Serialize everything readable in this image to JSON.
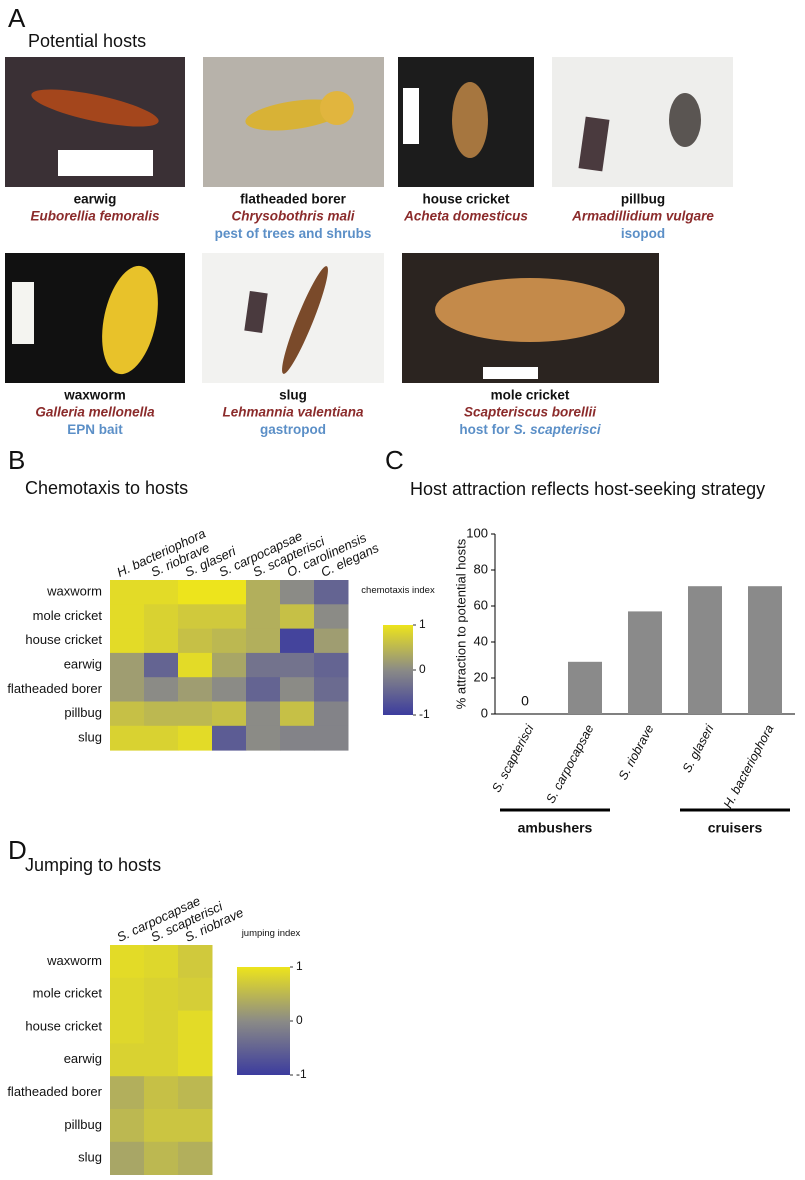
{
  "panel_a": {
    "label": "A",
    "title": "Potential hosts",
    "hosts": [
      {
        "common": "earwig",
        "species": "Euborellia femoralis"
      },
      {
        "common": "flatheaded borer",
        "species": "Chrysobothris mali",
        "note": "pest of trees and shrubs"
      },
      {
        "common": "house cricket",
        "species": "Acheta domesticus"
      },
      {
        "common": "pillbug",
        "species": "Armadillidium vulgare",
        "note": "isopod"
      },
      {
        "common": "waxworm",
        "species": "Galleria mellonella",
        "note": "EPN bait"
      },
      {
        "common": "slug",
        "species": "Lehmannia valentiana",
        "note": "gastropod"
      },
      {
        "common": "mole cricket",
        "species": "Scapteriscus borellii",
        "note": "host for",
        "note_species": "S. scapterisci"
      }
    ]
  },
  "chart_data": [
    {
      "type": "heatmap",
      "panel": "B",
      "title": "Chemotaxis to hosts",
      "columns": [
        "H. bacteriophora",
        "S. riobrave",
        "S. glaseri",
        "S. carpocapsae",
        "S. scapterisci",
        "O. carolinensis",
        "C. elegans"
      ],
      "rows": [
        "waxworm",
        "mole cricket",
        "house cricket",
        "earwig",
        "flatheaded borer",
        "pillbug",
        "slug"
      ],
      "values": [
        [
          0.9,
          0.9,
          1,
          1,
          0.4,
          0,
          -0.5
        ],
        [
          0.9,
          0.8,
          0.7,
          0.7,
          0.4,
          0.6,
          0
        ],
        [
          0.9,
          0.8,
          0.6,
          0.5,
          0.4,
          -0.9,
          0.2
        ],
        [
          0.2,
          -0.5,
          0.9,
          0.3,
          -0.3,
          -0.3,
          -0.5
        ],
        [
          0.2,
          0,
          0.2,
          0,
          -0.5,
          0,
          -0.4
        ],
        [
          0.6,
          0.5,
          0.5,
          0.6,
          0,
          0.6,
          -0.1
        ],
        [
          0.8,
          0.8,
          0.9,
          -0.6,
          0,
          -0.1,
          -0.1
        ]
      ],
      "colorbar_label": "chemotaxis index",
      "clim": [
        -1,
        1
      ],
      "cticks": [
        1,
        0,
        -1
      ],
      "colormap": [
        "#3c3c9e",
        "#8b8b86",
        "#ede41c"
      ]
    },
    {
      "type": "bar",
      "panel": "C",
      "title": "Host attraction reflects host-seeking strategy",
      "categories": [
        "S. scapterisci",
        "S. carpocapsae",
        "S. riobrave",
        "S. glaseri",
        "H. bacteriophora"
      ],
      "values": [
        0,
        29,
        57,
        71,
        71
      ],
      "color": "#8a8a8a",
      "ylabel": "% attraction to potential hosts",
      "ylim": [
        0,
        100
      ],
      "yticks": [
        0,
        20,
        40,
        60,
        80,
        100
      ],
      "groups": [
        {
          "label": "ambushers",
          "from": 0,
          "to": 1
        },
        {
          "label": "cruisers",
          "from": 3,
          "to": 4
        }
      ]
    },
    {
      "type": "heatmap",
      "panel": "D",
      "title": "Jumping to hosts",
      "columns": [
        "S. carpocapsae",
        "S. scapterisci",
        "S. riobrave"
      ],
      "rows": [
        "waxworm",
        "mole cricket",
        "house cricket",
        "earwig",
        "flatheaded borer",
        "pillbug",
        "slug"
      ],
      "values": [
        [
          0.9,
          0.85,
          0.7
        ],
        [
          0.85,
          0.8,
          0.75
        ],
        [
          0.85,
          0.8,
          0.9
        ],
        [
          0.8,
          0.8,
          0.9
        ],
        [
          0.4,
          0.6,
          0.5
        ],
        [
          0.5,
          0.65,
          0.65
        ],
        [
          0.3,
          0.5,
          0.4
        ]
      ],
      "colorbar_label": "jumping index",
      "clim": [
        -1,
        1
      ],
      "cticks": [
        1,
        0,
        -1
      ],
      "colormap": [
        "#3c3c9e",
        "#8b8b86",
        "#ede41c"
      ]
    }
  ]
}
